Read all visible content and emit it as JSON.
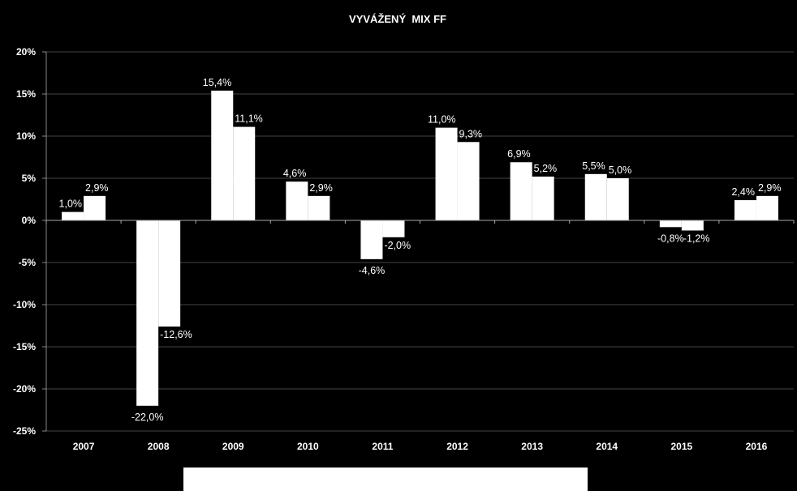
{
  "chart_data": {
    "type": "bar",
    "title": "VYVÁŽENÝ  MIX FF",
    "categories": [
      "2007",
      "2008",
      "2009",
      "2010",
      "2011",
      "2012",
      "2013",
      "2014",
      "2015",
      "2016"
    ],
    "series": [
      {
        "values": [
          1.0,
          -22.0,
          15.4,
          4.6,
          -4.6,
          11.0,
          6.9,
          5.5,
          -0.8,
          2.4
        ],
        "labels": [
          "1,0%",
          "-22,0%",
          "15,4%",
          "4,6%",
          "-4,6%",
          "11,0%",
          "6,9%",
          "5,5%",
          "-0,8%",
          "2,4%"
        ]
      },
      {
        "values": [
          2.9,
          -12.6,
          11.1,
          2.9,
          -2.0,
          9.3,
          5.2,
          5.0,
          -1.2,
          2.9
        ],
        "labels": [
          "2,9%",
          "-12,6%",
          "11,1%",
          "2,9%",
          "-2,0%",
          "9,3%",
          "5,2%",
          "5,0%",
          "-1,2%",
          "2,9%"
        ]
      }
    ],
    "ylim": [
      -25,
      20
    ],
    "yticks": [
      20,
      15,
      10,
      5,
      0,
      -5,
      -10,
      -15,
      -20,
      -25
    ],
    "ytick_labels": [
      "20%",
      "15%",
      "10%",
      "5%",
      "0%",
      "-5%",
      "-10%",
      "-15%",
      "-20%",
      "-25%"
    ],
    "grid": true,
    "colors": {
      "background": "#000000",
      "bars": "#ffffff",
      "text": "#ffffff",
      "grid": "#444444"
    }
  }
}
